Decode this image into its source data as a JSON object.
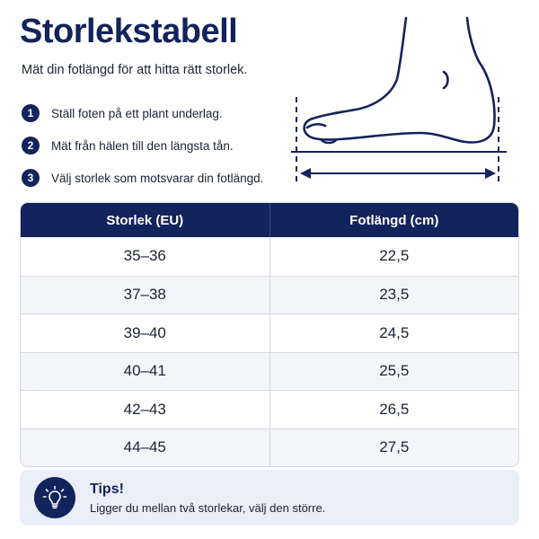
{
  "header": {
    "title": "Storlekstabell",
    "subtitle": "Mät din fotlängd för att hitta rätt storlek."
  },
  "steps": [
    {
      "number": "1",
      "text": "Ställ foten på ett plant underlag."
    },
    {
      "number": "2",
      "text": "Mät från hälen till den längsta tån."
    },
    {
      "number": "3",
      "text": "Välj storlek som motsvarar din fotlängd."
    }
  ],
  "illustration": {
    "icon": "foot-measure-icon"
  },
  "table": {
    "headers": [
      "Storlek (EU)",
      "Fotlängd (cm)"
    ],
    "rows": [
      [
        "35–36",
        "22,5"
      ],
      [
        "37–38",
        "23,5"
      ],
      [
        "39–40",
        "24,5"
      ],
      [
        "40–41",
        "25,5"
      ],
      [
        "42–43",
        "26,5"
      ],
      [
        "44–45",
        "27,5"
      ]
    ]
  },
  "tips": {
    "icon": "lightbulb-icon",
    "title": "Tips!",
    "text": "Ligger du mellan två storlekar, välj den större."
  },
  "colors": {
    "primary": "#13235b",
    "row_alt": "#f4f5f8",
    "tips_bg": "#eaeef8"
  }
}
